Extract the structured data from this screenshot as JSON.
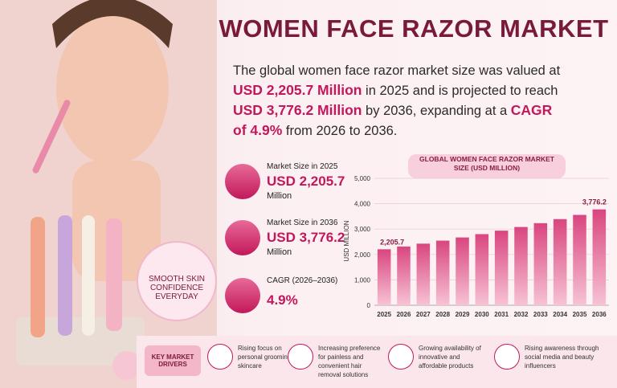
{
  "header": {
    "title": "WOMEN FACE RAZOR MARKET"
  },
  "intro": [
    {
      "text": "The global women face razor market size was valued at ",
      "highlight": false
    },
    {
      "text": "USD 2,205.7 Million",
      "highlight": true
    },
    {
      "text": " in 2025 and is projected to reach ",
      "highlight": false
    },
    {
      "text": "USD 3,776.2 Million",
      "highlight": true
    },
    {
      "text": " by 2036, expanding at a ",
      "highlight": false
    },
    {
      "text": "CAGR of 4.9%",
      "highlight": true
    },
    {
      "text": " from 2026 to 2036.",
      "highlight": false
    }
  ],
  "stats": [
    {
      "label": "Market Size in 2025",
      "value": "USD 2,205.7",
      "unit": "Million"
    },
    {
      "label": "Market Size in 2036",
      "value": "USD 3,776.2",
      "unit": "Million"
    },
    {
      "label": "CAGR (2026–2036)",
      "value": "4.9%"
    }
  ],
  "badge": "SMOOTH SKIN CONFIDENCE EVERYDAY",
  "chart_data": {
    "type": "bar",
    "title": "GLOBAL WOMEN FACE RAZOR MARKET SIZE (USD MILLION)",
    "y_label": "USD MILLION",
    "categories": [
      "2025",
      "2026",
      "2027",
      "2028",
      "2029",
      "2030",
      "2031",
      "2032",
      "2033",
      "2034",
      "2035",
      "2036"
    ],
    "values": [
      2205.7,
      2314,
      2427,
      2546,
      2671,
      2802,
      2939,
      3083,
      3234,
      3393,
      3559,
      3776.2
    ],
    "value_labels": [
      "2,205.7",
      null,
      null,
      null,
      null,
      null,
      null,
      null,
      null,
      null,
      null,
      "3,776.2"
    ],
    "color": "#d9467f",
    "ylim": [
      0,
      5000
    ],
    "yticks": [
      0,
      {
        "value": 1000,
        "label": "1,000"
      },
      {
        "value": 2000,
        "label": "2,000"
      },
      {
        "value": 3000,
        "label": "3,000"
      },
      {
        "value": 4000,
        "label": "4,000"
      },
      {
        "value": 5000,
        "label": "5,000"
      }
    ],
    "grid": true
  },
  "drivers": {
    "title": "KEY MARKET DRIVERS",
    "items": [
      "Rising focus on personal grooming and skincare",
      "Increasing preference for painless and convenient hair removal solutions",
      "Growing availability of innovative and affordable products",
      "Rising awareness through social media and beauty influencers"
    ]
  }
}
